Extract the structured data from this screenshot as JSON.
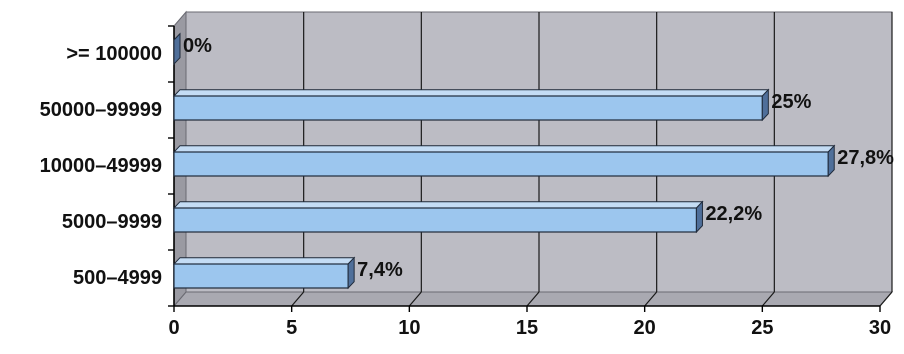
{
  "chart_data": {
    "type": "bar",
    "orientation": "horizontal",
    "categories": [
      "500–4999",
      "5000–9999",
      "10000–49999",
      "50000–99999",
      ">= 100000"
    ],
    "values": [
      7.4,
      22.2,
      27.8,
      25,
      0
    ],
    "data_labels": [
      "7,4%",
      "22,2%",
      "27,8%",
      "25%",
      "0%"
    ],
    "x_ticks": [
      "0",
      "5",
      "10",
      "15",
      "20",
      "25",
      "30"
    ],
    "xlim": [
      0,
      30
    ],
    "grid": true,
    "legend": "none",
    "title": "",
    "xlabel": "",
    "ylabel": "",
    "colors": {
      "bar_face": "#9cc6ee",
      "bar_top": "#c4dcf4",
      "bar_side": "#4f6f9a",
      "bar_edge": "#1f2a3a",
      "plot_back": "#bcbcc4",
      "plot_floor": "#a9a9b1",
      "wall_left": "#9a9aa2",
      "gridline": "#1a1a1a"
    }
  }
}
